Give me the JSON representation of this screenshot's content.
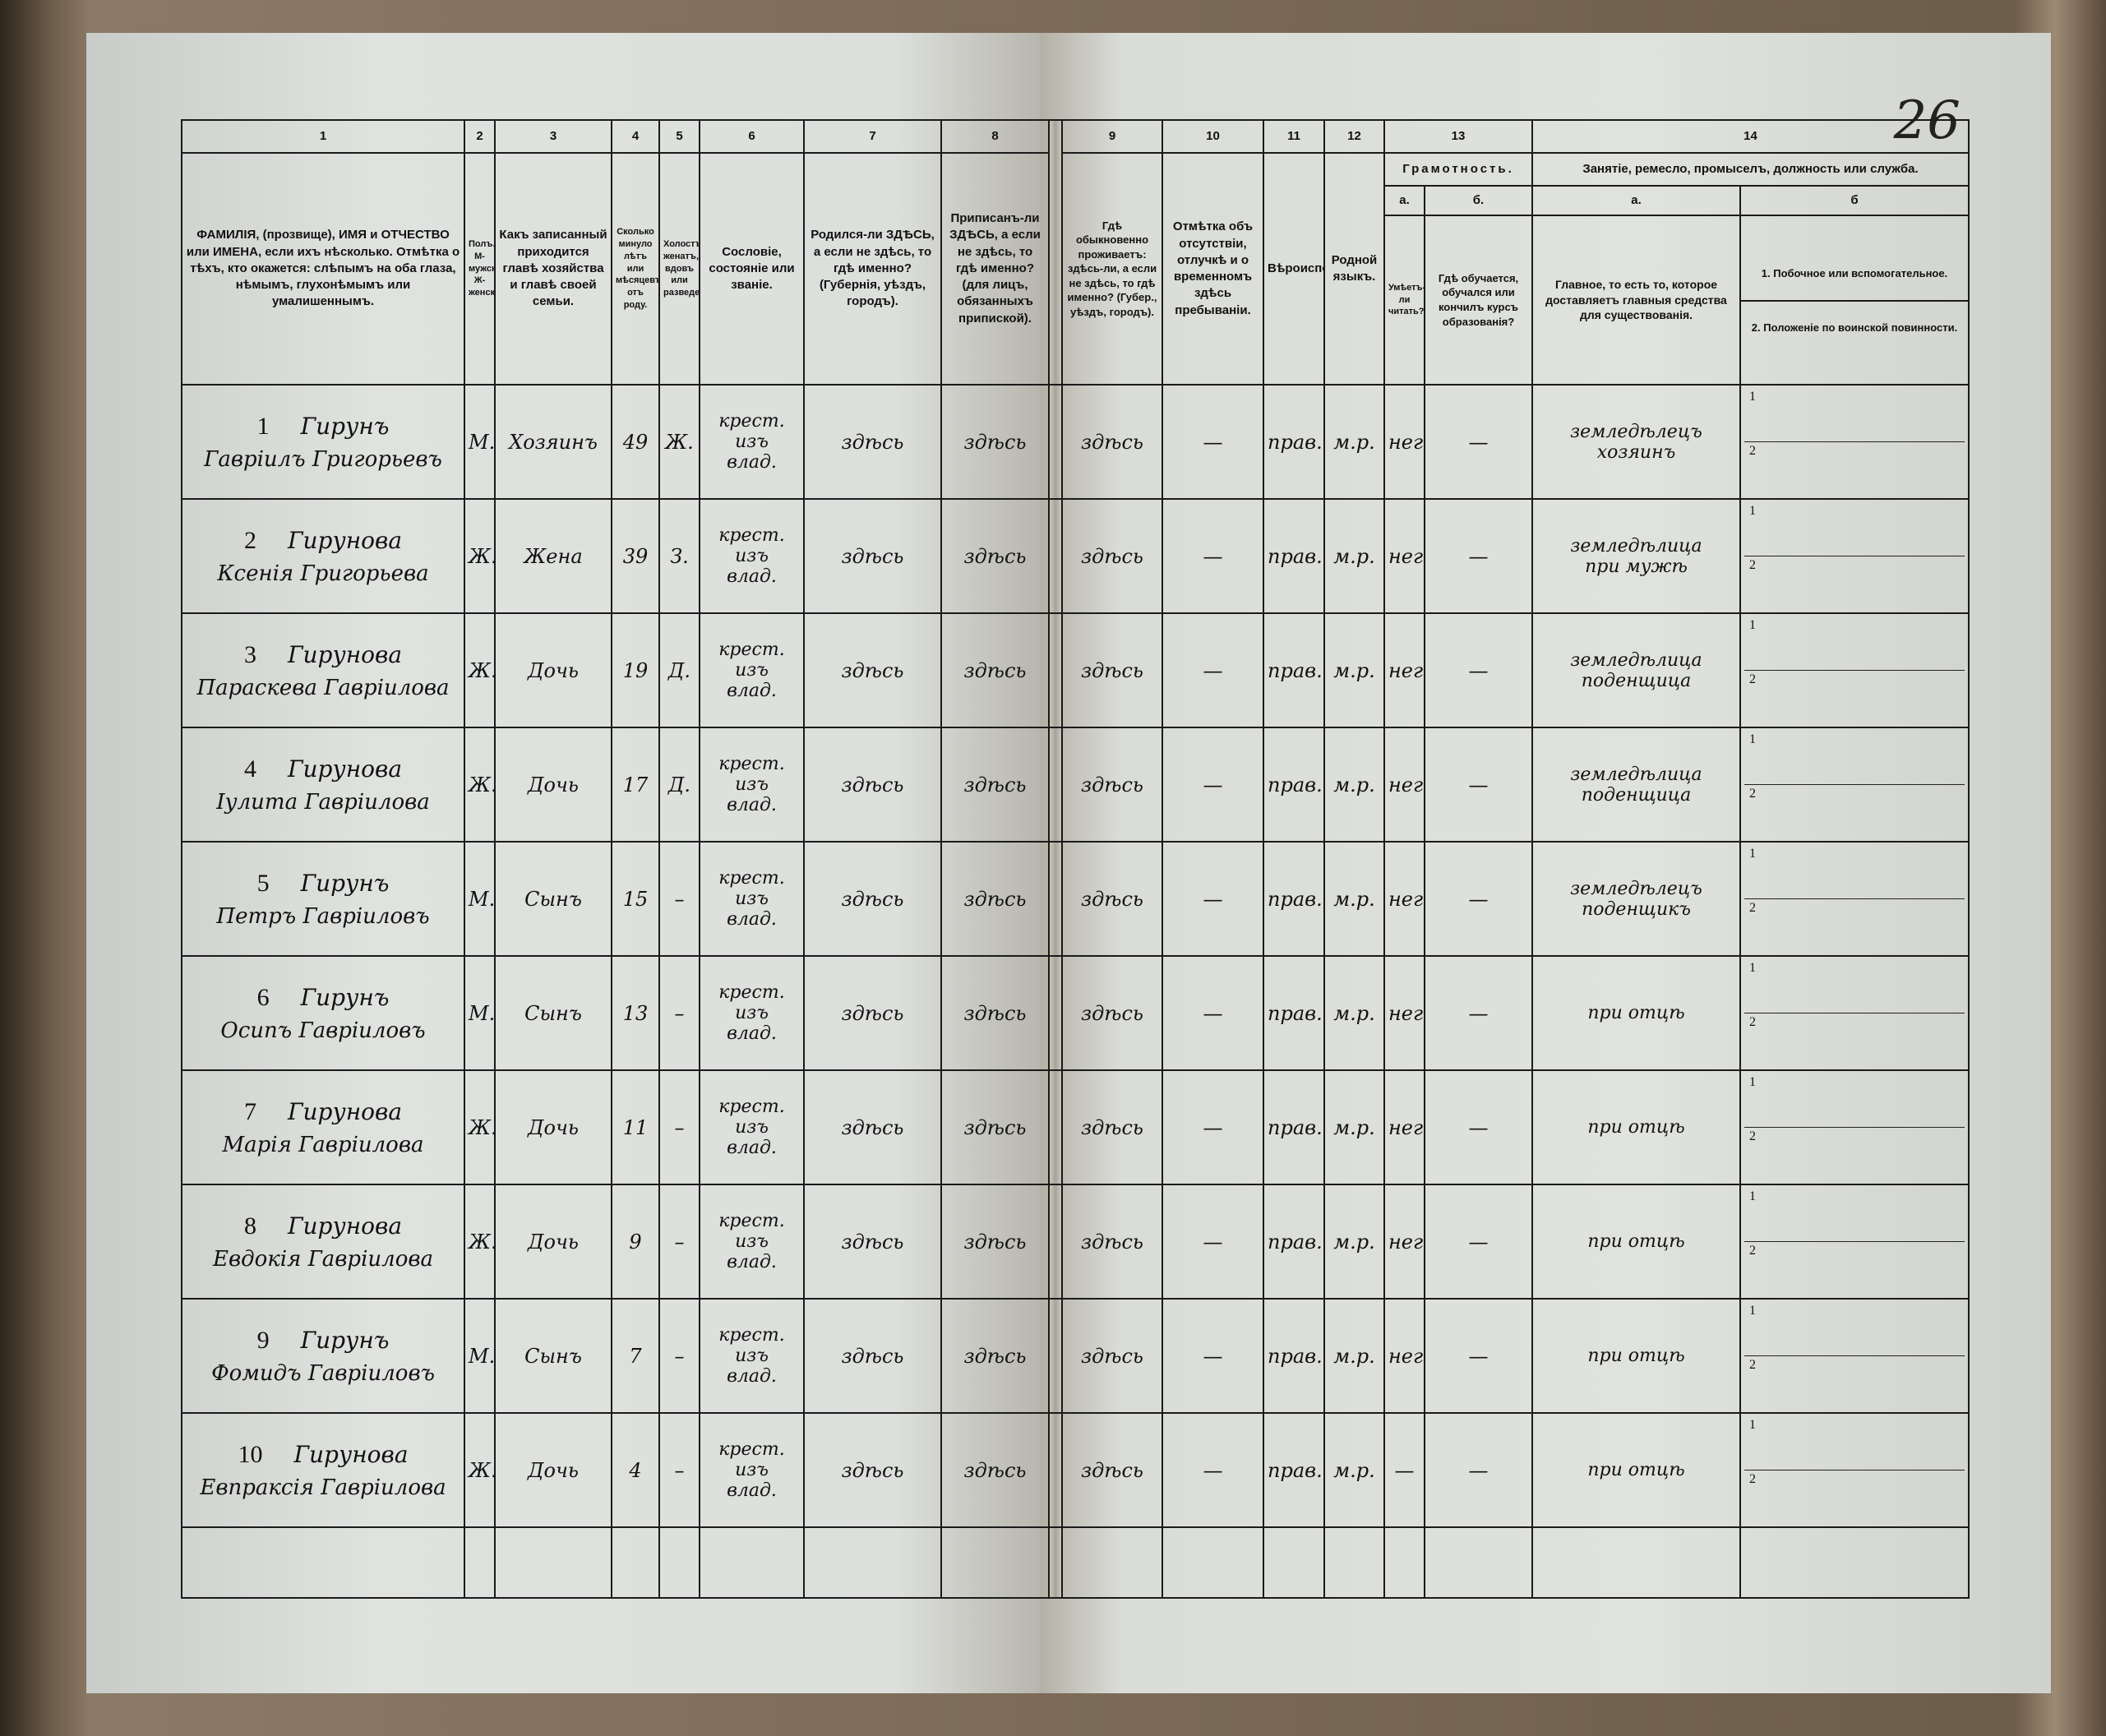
{
  "page_number": "26",
  "column_numbers": [
    "1",
    "2",
    "3",
    "4",
    "5",
    "6",
    "7",
    "8",
    "9",
    "10",
    "11",
    "12",
    "13",
    "14"
  ],
  "headers": {
    "c1": "ФАМИЛІЯ, (прозвище), ИМЯ и ОТЧЕСТВО или ИМЕНА, если ихъ нѣсколько. Отмѣтка о тѣхъ, кто окажется: слѣпымъ на оба глаза, нѣмымъ, глухонѣмымъ или умалишеннымъ.",
    "c2": "Полъ. М-мужской. Ж-женскій.",
    "c3": "Какъ записанный приходится главѣ хозяйства и главѣ своей семьи.",
    "c4": "Сколько минуло лѣтъ или мѣсяцевъ отъ роду.",
    "c5": "Холостъ, женатъ, вдовъ или разведенъ.",
    "c6": "Сословіе, состояніе или званіе.",
    "c7": "Родился-ли ЗДѢСЬ, а если не здѣсь, то гдѣ именно? (Губернія, уѣздъ, городъ).",
    "c8": "Приписанъ-ли ЗДѢСЬ, а если не здѣсь, то гдѣ именно? (для лицъ, обязанныхъ припиской).",
    "c9": "Гдѣ обыкновенно проживаетъ: здѣсь-ли, а если не здѣсь, то гдѣ именно? (Губер., уѣздъ, городъ).",
    "c10": "Отмѣтка объ отсутствіи, отлучкѣ и о временномъ здѣсь пребываніи.",
    "c11": "Вѣроисповѣданіе.",
    "c12": "Родной языкъ.",
    "c13": "Грамотность.",
    "c13a_label": "а.",
    "c13a": "Умѣетъ-ли читать?",
    "c13b_label": "б.",
    "c13b": "Гдѣ обучается, обучался или кончилъ курсъ образованія?",
    "c14": "Занятіе, ремесло, промыселъ, должность или служба.",
    "c14a_label": "а.",
    "c14a": "Главное, то есть то, которое доставляетъ главныя средства для существованія.",
    "c14b_label": "б",
    "c14b_1": "1. Побочное или вспомогательное.",
    "c14b_2": "2. Положеніе по воинской повинности."
  },
  "rows": [
    {
      "num": "1",
      "surname": "Гирунъ",
      "given": "Гавріилъ Григорьевъ",
      "sex": "М.",
      "relation": "Хозяинъ",
      "age": "49",
      "marital": "Ж.",
      "estate": [
        "крест.",
        "изъ",
        "влад."
      ],
      "born": "здѣсь",
      "registered": "здѣсь",
      "residence": "здѣсь",
      "absence": "—",
      "religion": "прав.",
      "language": "м.р.",
      "literate": "негр.",
      "education": "—",
      "occupation": [
        "земледѣлецъ",
        "хозяинъ"
      ],
      "sec1": "1",
      "sec2": "2"
    },
    {
      "num": "2",
      "surname": "Гирунова",
      "given": "Ксенія Григорьева",
      "sex": "Ж.",
      "relation": "Жена",
      "age": "39",
      "marital": "З.",
      "estate": [
        "крест.",
        "изъ",
        "влад."
      ],
      "born": "здѣсь",
      "registered": "здѣсь",
      "residence": "здѣсь",
      "absence": "—",
      "religion": "прав.",
      "language": "м.р.",
      "literate": "негр.",
      "education": "—",
      "occupation": [
        "земледѣлица",
        "при мужѣ"
      ],
      "sec1": "1",
      "sec2": "2"
    },
    {
      "num": "3",
      "surname": "Гирунова",
      "given": "Параскева Гавріилова",
      "sex": "Ж.",
      "relation": "Дочь",
      "age": "19",
      "marital": "Д.",
      "estate": [
        "крест.",
        "изъ",
        "влад."
      ],
      "born": "здѣсь",
      "registered": "здѣсь",
      "residence": "здѣсь",
      "absence": "—",
      "religion": "прав.",
      "language": "м.р.",
      "literate": "негр.",
      "education": "—",
      "occupation": [
        "земледѣлица",
        "поденщица"
      ],
      "sec1": "1",
      "sec2": "2"
    },
    {
      "num": "4",
      "surname": "Гирунова",
      "given": "Іулита Гавріилова",
      "sex": "Ж.",
      "relation": "Дочь",
      "age": "17",
      "marital": "Д.",
      "estate": [
        "крест.",
        "изъ",
        "влад."
      ],
      "born": "здѣсь",
      "registered": "здѣсь",
      "residence": "здѣсь",
      "absence": "—",
      "religion": "прав.",
      "language": "м.р.",
      "literate": "негр.",
      "education": "—",
      "occupation": [
        "земледѣлица",
        "поденщица"
      ],
      "sec1": "1",
      "sec2": "2"
    },
    {
      "num": "5",
      "surname": "Гирунъ",
      "given": "Петръ Гавріиловъ",
      "sex": "М.",
      "relation": "Сынъ",
      "age": "15",
      "marital": "–",
      "estate": [
        "крест.",
        "изъ",
        "влад."
      ],
      "born": "здѣсь",
      "registered": "здѣсь",
      "residence": "здѣсь",
      "absence": "—",
      "religion": "прав.",
      "language": "м.р.",
      "literate": "негр.",
      "education": "—",
      "occupation": [
        "земледѣлецъ",
        "поденщикъ"
      ],
      "sec1": "1",
      "sec2": "2"
    },
    {
      "num": "6",
      "surname": "Гирунъ",
      "given": "Осипъ Гавріиловъ",
      "sex": "М.",
      "relation": "Сынъ",
      "age": "13",
      "marital": "–",
      "estate": [
        "крест.",
        "изъ",
        "влад."
      ],
      "born": "здѣсь",
      "registered": "здѣсь",
      "residence": "здѣсь",
      "absence": "—",
      "religion": "прав.",
      "language": "м.р.",
      "literate": "негр.",
      "education": "—",
      "occupation": [
        "при отцѣ",
        ""
      ],
      "sec1": "1",
      "sec2": "2"
    },
    {
      "num": "7",
      "surname": "Гирунова",
      "given": "Марія Гавріилова",
      "sex": "Ж.",
      "relation": "Дочь",
      "age": "11",
      "marital": "–",
      "estate": [
        "крест.",
        "изъ",
        "влад."
      ],
      "born": "здѣсь",
      "registered": "здѣсь",
      "residence": "здѣсь",
      "absence": "—",
      "religion": "прав.",
      "language": "м.р.",
      "literate": "негр.",
      "education": "—",
      "occupation": [
        "при отцѣ",
        ""
      ],
      "sec1": "1",
      "sec2": "2"
    },
    {
      "num": "8",
      "surname": "Гирунова",
      "given": "Евдокія Гавріилова",
      "sex": "Ж.",
      "relation": "Дочь",
      "age": "9",
      "marital": "–",
      "estate": [
        "крест.",
        "изъ",
        "влад."
      ],
      "born": "здѣсь",
      "registered": "здѣсь",
      "residence": "здѣсь",
      "absence": "—",
      "religion": "прав.",
      "language": "м.р.",
      "literate": "негр.",
      "education": "—",
      "occupation": [
        "при отцѣ",
        ""
      ],
      "sec1": "1",
      "sec2": "2"
    },
    {
      "num": "9",
      "surname": "Гирунъ",
      "given": "Фомидъ Гавріиловъ",
      "sex": "М.",
      "relation": "Сынъ",
      "age": "7",
      "marital": "–",
      "estate": [
        "крест.",
        "изъ",
        "влад."
      ],
      "born": "здѣсь",
      "registered": "здѣсь",
      "residence": "здѣсь",
      "absence": "—",
      "religion": "прав.",
      "language": "м.р.",
      "literate": "негр.",
      "education": "—",
      "occupation": [
        "при отцѣ",
        ""
      ],
      "sec1": "1",
      "sec2": "2"
    },
    {
      "num": "10",
      "surname": "Гирунова",
      "given": "Евпраксія Гавріилова",
      "sex": "Ж.",
      "relation": "Дочь",
      "age": "4",
      "marital": "–",
      "estate": [
        "крест.",
        "изъ",
        "влад."
      ],
      "born": "здѣсь",
      "registered": "здѣсь",
      "residence": "здѣсь",
      "absence": "—",
      "religion": "прав.",
      "language": "м.р.",
      "literate": "—",
      "education": "—",
      "occupation": [
        "при отцѣ",
        ""
      ],
      "sec1": "1",
      "sec2": "2"
    }
  ]
}
